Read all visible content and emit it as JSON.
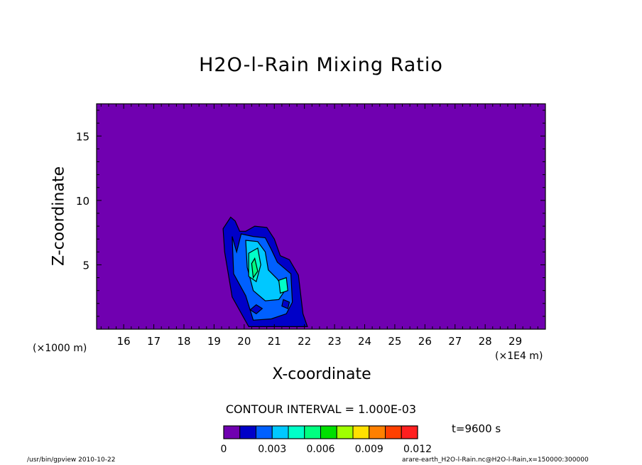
{
  "chart_data": {
    "type": "contour",
    "title": "H2O-l-Rain Mixing Ratio",
    "xlabel": "X-coordinate",
    "ylabel": "Z-coordinate",
    "x_unit_left": "(×1000 m)",
    "x_unit_right": "(×1E4 m)",
    "xlim": [
      15.1,
      30
    ],
    "ylim": [
      0,
      17.5
    ],
    "x_ticks": [
      16,
      17,
      18,
      19,
      20,
      21,
      22,
      23,
      24,
      25,
      26,
      27,
      28,
      29
    ],
    "y_ticks": [
      5,
      10,
      15
    ],
    "contour_interval_text": "CONTOUR INTERVAL = 1.000E-03",
    "time_text": "t=9600 s",
    "colorbar": {
      "levels": [
        0,
        0.001,
        0.002,
        0.003,
        0.004,
        0.005,
        0.006,
        0.007,
        0.008,
        0.009,
        0.01,
        0.011,
        0.012
      ],
      "tick_labels": [
        "0",
        "0.003",
        "0.006",
        "0.009",
        "0.012"
      ],
      "tick_values": [
        0,
        0.003,
        0.006,
        0.009,
        0.012
      ],
      "colors": [
        "#7000b0",
        "#0000c8",
        "#0060ff",
        "#00c8ff",
        "#00ffc8",
        "#00ff80",
        "#00e000",
        "#a0ff00",
        "#ffe000",
        "#ff8000",
        "#ff4000",
        "#ff2020",
        "#ff9090"
      ]
    },
    "background_color": "#7000b0",
    "blobs": [
      {
        "level": 1,
        "points": [
          [
            19.55,
            8.7
          ],
          [
            19.7,
            8.4
          ],
          [
            19.85,
            7.6
          ],
          [
            20.05,
            7.6
          ],
          [
            20.35,
            8.0
          ],
          [
            20.75,
            7.9
          ],
          [
            21.0,
            7.0
          ],
          [
            21.2,
            5.7
          ],
          [
            21.5,
            5.4
          ],
          [
            21.8,
            4.2
          ],
          [
            21.95,
            1.2
          ],
          [
            22.1,
            0.2
          ],
          [
            20.15,
            0.2
          ],
          [
            19.6,
            2.5
          ],
          [
            19.35,
            6.0
          ],
          [
            19.3,
            7.8
          ]
        ]
      },
      {
        "level": 2,
        "points": [
          [
            19.6,
            7.2
          ],
          [
            19.75,
            6.0
          ],
          [
            19.9,
            7.4
          ],
          [
            20.3,
            7.2
          ],
          [
            20.7,
            7.1
          ],
          [
            20.9,
            6.2
          ],
          [
            21.1,
            5.2
          ],
          [
            21.55,
            4.3
          ],
          [
            21.6,
            2.1
          ],
          [
            21.4,
            1.2
          ],
          [
            20.9,
            0.8
          ],
          [
            20.3,
            0.7
          ],
          [
            20.05,
            2.6
          ],
          [
            19.65,
            4.3
          ]
        ]
      },
      {
        "level": 3,
        "points": [
          [
            20.05,
            6.9
          ],
          [
            20.45,
            6.8
          ],
          [
            20.7,
            6.0
          ],
          [
            20.8,
            4.6
          ],
          [
            21.1,
            3.9
          ],
          [
            21.35,
            3.0
          ],
          [
            21.15,
            2.3
          ],
          [
            20.7,
            2.2
          ],
          [
            20.3,
            3.0
          ],
          [
            20.1,
            4.8
          ]
        ]
      },
      {
        "level": 4,
        "points": [
          [
            20.15,
            5.9
          ],
          [
            20.45,
            6.3
          ],
          [
            20.55,
            5.0
          ],
          [
            20.4,
            3.7
          ],
          [
            20.15,
            4.1
          ]
        ]
      },
      {
        "level": 4,
        "points": [
          [
            21.15,
            3.8
          ],
          [
            21.4,
            4.0
          ],
          [
            21.45,
            3.0
          ],
          [
            21.2,
            2.8
          ]
        ]
      },
      {
        "level": 5,
        "points": [
          [
            20.25,
            5.1
          ],
          [
            20.35,
            5.5
          ],
          [
            20.45,
            4.5
          ],
          [
            20.3,
            4.0
          ]
        ]
      },
      {
        "level": 1,
        "points": [
          [
            20.2,
            1.5
          ],
          [
            20.4,
            1.2
          ],
          [
            20.6,
            1.6
          ],
          [
            20.4,
            1.9
          ]
        ]
      },
      {
        "level": 1,
        "points": [
          [
            21.25,
            1.8
          ],
          [
            21.45,
            1.6
          ],
          [
            21.5,
            2.1
          ],
          [
            21.3,
            2.3
          ]
        ]
      }
    ]
  },
  "footer": {
    "left": "/usr/bin/gpview   2010-10-22",
    "right": "arare-earth_H2O-l-Rain.nc@H2O-l-Rain,x=150000:300000"
  }
}
